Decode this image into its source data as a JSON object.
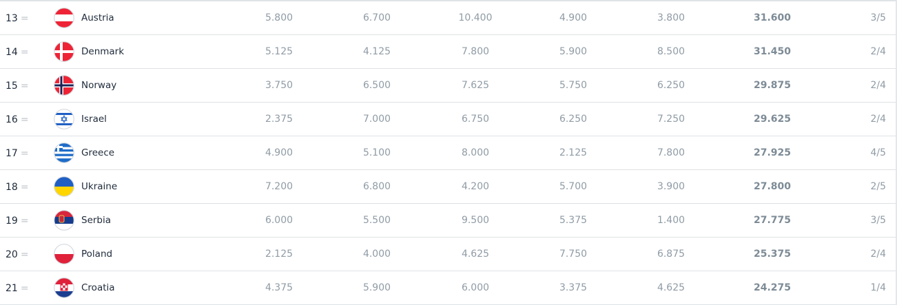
{
  "rows": [
    {
      "rank": "13",
      "trend": "=",
      "country": "Austria",
      "flag": "austria-flag",
      "scores": [
        "5.800",
        "6.700",
        "10.400",
        "4.900",
        "3.800"
      ],
      "total": "31.600",
      "fraction": "3/5"
    },
    {
      "rank": "14",
      "trend": "=",
      "country": "Denmark",
      "flag": "denmark-flag",
      "scores": [
        "5.125",
        "4.125",
        "7.800",
        "5.900",
        "8.500"
      ],
      "total": "31.450",
      "fraction": "2/4"
    },
    {
      "rank": "15",
      "trend": "=",
      "country": "Norway",
      "flag": "norway-flag",
      "scores": [
        "3.750",
        "6.500",
        "7.625",
        "5.750",
        "6.250"
      ],
      "total": "29.875",
      "fraction": "2/4"
    },
    {
      "rank": "16",
      "trend": "=",
      "country": "Israel",
      "flag": "israel-flag",
      "scores": [
        "2.375",
        "7.000",
        "6.750",
        "6.250",
        "7.250"
      ],
      "total": "29.625",
      "fraction": "2/4"
    },
    {
      "rank": "17",
      "trend": "=",
      "country": "Greece",
      "flag": "greece-flag",
      "scores": [
        "4.900",
        "5.100",
        "8.000",
        "2.125",
        "7.800"
      ],
      "total": "27.925",
      "fraction": "4/5"
    },
    {
      "rank": "18",
      "trend": "=",
      "country": "Ukraine",
      "flag": "ukraine-flag",
      "scores": [
        "7.200",
        "6.800",
        "4.200",
        "5.700",
        "3.900"
      ],
      "total": "27.800",
      "fraction": "2/5"
    },
    {
      "rank": "19",
      "trend": "=",
      "country": "Serbia",
      "flag": "serbia-flag",
      "scores": [
        "6.000",
        "5.500",
        "9.500",
        "5.375",
        "1.400"
      ],
      "total": "27.775",
      "fraction": "3/5"
    },
    {
      "rank": "20",
      "trend": "=",
      "country": "Poland",
      "flag": "poland-flag",
      "scores": [
        "2.125",
        "4.000",
        "4.625",
        "7.750",
        "6.875"
      ],
      "total": "25.375",
      "fraction": "2/4"
    },
    {
      "rank": "21",
      "trend": "=",
      "country": "Croatia",
      "flag": "croatia-flag",
      "scores": [
        "4.375",
        "5.900",
        "6.000",
        "3.375",
        "4.625"
      ],
      "total": "24.275",
      "fraction": "1/4"
    }
  ]
}
